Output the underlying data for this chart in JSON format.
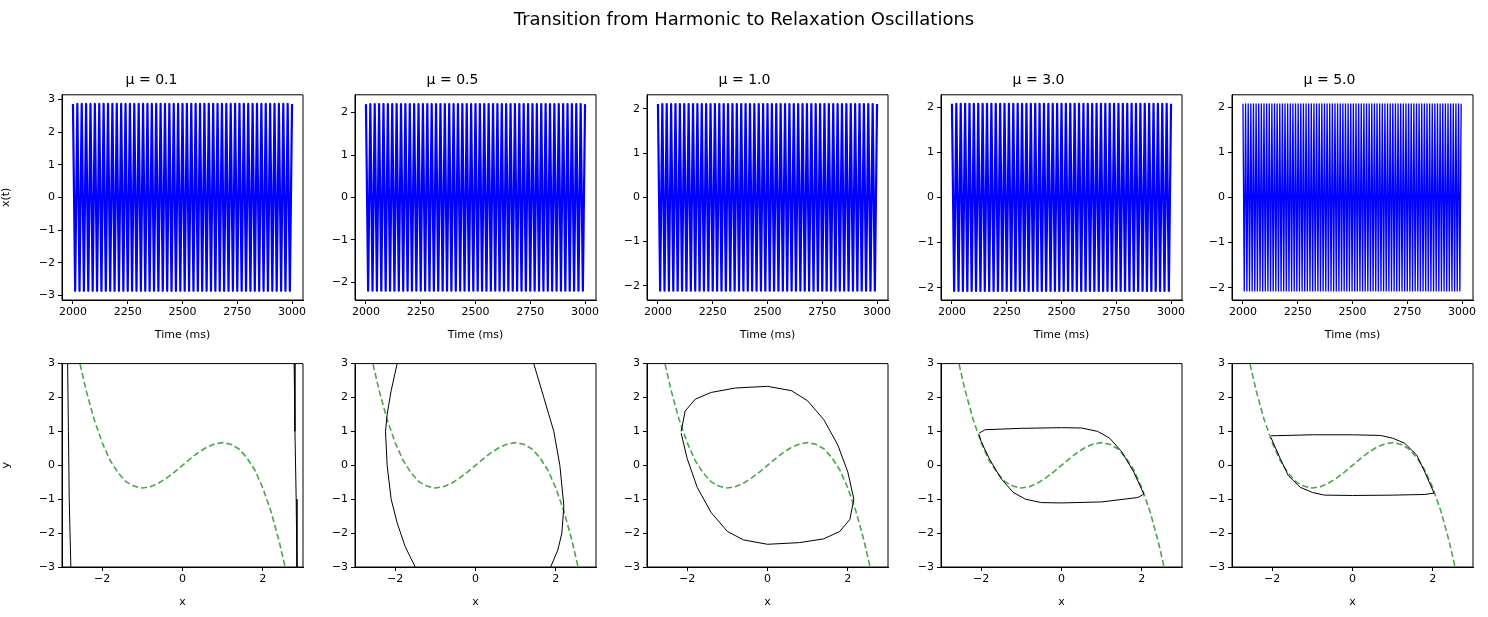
{
  "chart_data": [
    {
      "type": "line",
      "title": "μ = 0.1",
      "xlabel": "Time (ms)",
      "ylabel": "x(t)",
      "annotations": [
        "Transition from Harmonic to Relaxation Oscillations"
      ],
      "xlim": [
        1950,
        3050
      ],
      "xticks": [
        2000,
        2250,
        2500,
        2750,
        3000
      ],
      "ylim": [
        -3.14,
        3.14
      ],
      "yticks": [
        -3,
        -2,
        -1,
        0,
        1,
        2,
        3
      ],
      "x": [
        2000,
        2010,
        2020,
        2030,
        2040,
        2050,
        2060,
        2070,
        2080,
        2090,
        2100,
        2110,
        2120,
        2130,
        2140,
        2150,
        2160,
        2170,
        2180,
        2190,
        2200,
        2210,
        2220,
        2230,
        2240,
        2250,
        2260,
        2270,
        2280,
        2290,
        2300,
        2310,
        2320,
        2330,
        2340,
        2350,
        2360,
        2370,
        2380,
        2390,
        2400,
        2410,
        2420,
        2430,
        2440,
        2450,
        2460,
        2470,
        2480,
        2490,
        2500,
        2510,
        2520,
        2530,
        2540,
        2550,
        2560,
        2570,
        2580,
        2590,
        2600,
        2610,
        2620,
        2630,
        2640,
        2650,
        2660,
        2670,
        2680,
        2690,
        2700,
        2710,
        2720,
        2730,
        2740,
        2750,
        2760,
        2770,
        2780,
        2790,
        2800,
        2810,
        2820,
        2830,
        2840,
        2850,
        2860,
        2870,
        2880,
        2890,
        2900,
        2910,
        2920,
        2930,
        2940,
        2950,
        2960,
        2970,
        2980,
        2990,
        3000
      ],
      "series": [
        {
          "color": "#0000ff",
          "values": [
            2.86,
            -2.86,
            2.86,
            -2.86,
            2.86,
            -2.86,
            2.86,
            -2.86,
            2.86,
            -2.86,
            2.86,
            -2.86,
            2.86,
            -2.86,
            2.86,
            -2.86,
            2.86,
            -2.86,
            2.86,
            -2.86,
            2.86,
            -2.86,
            2.86,
            -2.86,
            2.86,
            -2.86,
            2.86,
            -2.86,
            2.86,
            -2.86,
            2.86,
            -2.86,
            2.86,
            -2.86,
            2.86,
            -2.86,
            2.86,
            -2.86,
            2.86,
            -2.86,
            2.86,
            -2.86,
            2.86,
            -2.86,
            2.86,
            -2.86,
            2.86,
            -2.86,
            2.86,
            -2.86,
            2.86,
            -2.86,
            2.86,
            -2.86,
            2.86,
            -2.86,
            2.86,
            -2.86,
            2.86,
            -2.86,
            2.86,
            -2.86,
            2.86,
            -2.86,
            2.86,
            -2.86,
            2.86,
            -2.86,
            2.86,
            -2.86,
            2.86,
            -2.86,
            2.86,
            -2.86,
            2.86,
            -2.86,
            2.86,
            -2.86,
            2.86,
            -2.86,
            2.86,
            -2.86,
            2.86,
            -2.86,
            2.86,
            -2.86,
            2.86,
            -2.86,
            2.86,
            -2.86,
            2.86,
            -2.86,
            2.86,
            -2.86,
            2.86,
            -2.86,
            2.86,
            -2.86,
            2.86,
            -2.86,
            2.86
          ]
        }
      ]
    },
    {
      "type": "line",
      "title": "μ = 0.5",
      "xlabel": "Time (ms)",
      "xlim": [
        1950,
        3050
      ],
      "xticks": [
        2000,
        2250,
        2500,
        2750,
        3000
      ],
      "ylim": [
        -2.42,
        2.42
      ],
      "yticks": [
        -2,
        -1,
        0,
        1,
        2
      ],
      "x": [
        2000,
        2010,
        2020,
        2030,
        2040,
        2050,
        2060,
        2070,
        2080,
        2090,
        2100,
        2110,
        2120,
        2130,
        2140,
        2150,
        2160,
        2170,
        2180,
        2190,
        2200,
        2210,
        2220,
        2230,
        2240,
        2250,
        2260,
        2270,
        2280,
        2290,
        2300,
        2310,
        2320,
        2330,
        2340,
        2350,
        2360,
        2370,
        2380,
        2390,
        2400,
        2410,
        2420,
        2430,
        2440,
        2450,
        2460,
        2470,
        2480,
        2490,
        2500,
        2510,
        2520,
        2530,
        2540,
        2550,
        2560,
        2570,
        2580,
        2590,
        2600,
        2610,
        2620,
        2630,
        2640,
        2650,
        2660,
        2670,
        2680,
        2690,
        2700,
        2710,
        2720,
        2730,
        2740,
        2750,
        2760,
        2770,
        2780,
        2790,
        2800,
        2810,
        2820,
        2830,
        2840,
        2850,
        2860,
        2870,
        2880,
        2890,
        2900,
        2910,
        2920,
        2930,
        2940,
        2950,
        2960,
        2970,
        2980,
        2990,
        3000
      ],
      "series": [
        {
          "color": "#0000ff",
          "values": [
            2.2,
            -2.2,
            2.2,
            -2.2,
            2.2,
            -2.2,
            2.2,
            -2.2,
            2.2,
            -2.2,
            2.2,
            -2.2,
            2.2,
            -2.2,
            2.2,
            -2.2,
            2.2,
            -2.2,
            2.2,
            -2.2,
            2.2,
            -2.2,
            2.2,
            -2.2,
            2.2,
            -2.2,
            2.2,
            -2.2,
            2.2,
            -2.2,
            2.2,
            -2.2,
            2.2,
            -2.2,
            2.2,
            -2.2,
            2.2,
            -2.2,
            2.2,
            -2.2,
            2.2,
            -2.2,
            2.2,
            -2.2,
            2.2,
            -2.2,
            2.2,
            -2.2,
            2.2,
            -2.2,
            2.2,
            -2.2,
            2.2,
            -2.2,
            2.2,
            -2.2,
            2.2,
            -2.2,
            2.2,
            -2.2,
            2.2,
            -2.2,
            2.2,
            -2.2,
            2.2,
            -2.2,
            2.2,
            -2.2,
            2.2,
            -2.2,
            2.2,
            -2.2,
            2.2,
            -2.2,
            2.2,
            -2.2,
            2.2,
            -2.2,
            2.2,
            -2.2,
            2.2,
            -2.2,
            2.2,
            -2.2,
            2.2,
            -2.2,
            2.2,
            -2.2,
            2.2,
            -2.2,
            2.2,
            -2.2,
            2.2,
            -2.2,
            2.2,
            -2.2,
            2.2,
            -2.2,
            2.2,
            -2.2,
            2.2
          ]
        }
      ]
    },
    {
      "type": "line",
      "title": "μ = 1.0",
      "xlabel": "Time (ms)",
      "xlim": [
        1950,
        3050
      ],
      "xticks": [
        2000,
        2250,
        2500,
        2750,
        3000
      ],
      "ylim": [
        -2.32,
        2.32
      ],
      "yticks": [
        -2,
        -1,
        0,
        1,
        2
      ],
      "x": [
        2000,
        2010,
        2020,
        2030,
        2040,
        2050,
        2060,
        2070,
        2080,
        2090,
        2100,
        2110,
        2120,
        2130,
        2140,
        2150,
        2160,
        2170,
        2180,
        2190,
        2200,
        2210,
        2220,
        2230,
        2240,
        2250,
        2260,
        2270,
        2280,
        2290,
        2300,
        2310,
        2320,
        2330,
        2340,
        2350,
        2360,
        2370,
        2380,
        2390,
        2400,
        2410,
        2420,
        2430,
        2440,
        2450,
        2460,
        2470,
        2480,
        2490,
        2500,
        2510,
        2520,
        2530,
        2540,
        2550,
        2560,
        2570,
        2580,
        2590,
        2600,
        2610,
        2620,
        2630,
        2640,
        2650,
        2660,
        2670,
        2680,
        2690,
        2700,
        2710,
        2720,
        2730,
        2740,
        2750,
        2760,
        2770,
        2780,
        2790,
        2800,
        2810,
        2820,
        2830,
        2840,
        2850,
        2860,
        2870,
        2880,
        2890,
        2900,
        2910,
        2920,
        2930,
        2940,
        2950,
        2960,
        2970,
        2980,
        2990,
        3000
      ],
      "series": [
        {
          "color": "#0000ff",
          "values": [
            2.11,
            -2.11,
            2.11,
            -2.11,
            2.11,
            -2.11,
            2.11,
            -2.11,
            2.11,
            -2.11,
            2.11,
            -2.11,
            2.11,
            -2.11,
            2.11,
            -2.11,
            2.11,
            -2.11,
            2.11,
            -2.11,
            2.11,
            -2.11,
            2.11,
            -2.11,
            2.11,
            -2.11,
            2.11,
            -2.11,
            2.11,
            -2.11,
            2.11,
            -2.11,
            2.11,
            -2.11,
            2.11,
            -2.11,
            2.11,
            -2.11,
            2.11,
            -2.11,
            2.11,
            -2.11,
            2.11,
            -2.11,
            2.11,
            -2.11,
            2.11,
            -2.11,
            2.11,
            -2.11,
            2.11,
            -2.11,
            2.11,
            -2.11,
            2.11,
            -2.11,
            2.11,
            -2.11,
            2.11,
            -2.11,
            2.11,
            -2.11,
            2.11,
            -2.11,
            2.11,
            -2.11,
            2.11,
            -2.11,
            2.11,
            -2.11,
            2.11,
            -2.11,
            2.11,
            -2.11,
            2.11,
            -2.11,
            2.11,
            -2.11,
            2.11,
            -2.11,
            2.11,
            -2.11,
            2.11,
            -2.11,
            2.11,
            -2.11,
            2.11,
            -2.11,
            2.11,
            -2.11,
            2.11,
            -2.11,
            2.11,
            -2.11,
            2.11,
            -2.11,
            2.11,
            -2.11,
            2.11,
            -2.11,
            2.11
          ]
        }
      ]
    },
    {
      "type": "line",
      "title": "μ = 3.0",
      "xlabel": "Time (ms)",
      "xlim": [
        1950,
        3050
      ],
      "xticks": [
        2000,
        2250,
        2500,
        2750,
        3000
      ],
      "ylim": [
        -2.27,
        2.27
      ],
      "yticks": [
        -2,
        -1,
        0,
        1,
        2
      ],
      "x": [
        2000,
        2010,
        2020,
        2030,
        2040,
        2050,
        2060,
        2070,
        2080,
        2090,
        2100,
        2110,
        2120,
        2130,
        2140,
        2150,
        2160,
        2170,
        2180,
        2190,
        2200,
        2210,
        2220,
        2230,
        2240,
        2250,
        2260,
        2270,
        2280,
        2290,
        2300,
        2310,
        2320,
        2330,
        2340,
        2350,
        2360,
        2370,
        2380,
        2390,
        2400,
        2410,
        2420,
        2430,
        2440,
        2450,
        2460,
        2470,
        2480,
        2490,
        2500,
        2510,
        2520,
        2530,
        2540,
        2550,
        2560,
        2570,
        2580,
        2590,
        2600,
        2610,
        2620,
        2630,
        2640,
        2650,
        2660,
        2670,
        2680,
        2690,
        2700,
        2710,
        2720,
        2730,
        2740,
        2750,
        2760,
        2770,
        2780,
        2790,
        2800,
        2810,
        2820,
        2830,
        2840,
        2850,
        2860,
        2870,
        2880,
        2890,
        2900,
        2910,
        2920,
        2930,
        2940,
        2950,
        2960,
        2970,
        2980,
        2990,
        3000
      ],
      "series": [
        {
          "color": "#0000ff",
          "values": [
            2.07,
            -2.07,
            2.07,
            -2.07,
            2.07,
            -2.07,
            2.07,
            -2.07,
            2.07,
            -2.07,
            2.07,
            -2.07,
            2.07,
            -2.07,
            2.07,
            -2.07,
            2.07,
            -2.07,
            2.07,
            -2.07,
            2.07,
            -2.07,
            2.07,
            -2.07,
            2.07,
            -2.07,
            2.07,
            -2.07,
            2.07,
            -2.07,
            2.07,
            -2.07,
            2.07,
            -2.07,
            2.07,
            -2.07,
            2.07,
            -2.07,
            2.07,
            -2.07,
            2.07,
            -2.07,
            2.07,
            -2.07,
            2.07,
            -2.07,
            2.07,
            -2.07,
            2.07,
            -2.07,
            2.07,
            -2.07,
            2.07,
            -2.07,
            2.07,
            -2.07,
            2.07,
            -2.07,
            2.07,
            -2.07,
            2.07,
            -2.07,
            2.07,
            -2.07,
            2.07,
            -2.07,
            2.07,
            -2.07,
            2.07,
            -2.07,
            2.07,
            -2.07,
            2.07,
            -2.07,
            2.07,
            -2.07,
            2.07,
            -2.07,
            2.07,
            -2.07,
            2.07,
            -2.07,
            2.07,
            -2.07,
            2.07,
            -2.07,
            2.07,
            -2.07,
            2.07,
            -2.07,
            2.07,
            -2.07,
            2.07,
            -2.07,
            2.07,
            -2.07,
            2.07,
            -2.07,
            2.07,
            -2.07,
            2.07
          ]
        }
      ]
    },
    {
      "type": "line",
      "title": "μ = 5.0",
      "xlabel": "Time (ms)",
      "xlim": [
        1950,
        3050
      ],
      "xticks": [
        2000,
        2250,
        2500,
        2750,
        3000
      ],
      "ylim": [
        -2.27,
        2.27
      ],
      "yticks": [
        -2,
        -1,
        0,
        1,
        2
      ],
      "x": [
        2000,
        2006,
        2012,
        2018,
        2024,
        2030,
        2036,
        2042,
        2048,
        2054,
        2060,
        2066,
        2072,
        2078,
        2084,
        2090,
        2096,
        2102,
        2108,
        2114,
        2120,
        2126,
        2132,
        2138,
        2144,
        2150,
        2156,
        2162,
        2168,
        2174,
        2180,
        2186,
        2192,
        2198,
        2204,
        2210,
        2216,
        2222,
        2228,
        2234,
        2240,
        2246,
        2252,
        2258,
        2264,
        2270,
        2276,
        2282,
        2288,
        2294,
        2300,
        2306,
        2312,
        2318,
        2324,
        2330,
        2336,
        2342,
        2348,
        2354,
        2360,
        2366,
        2372,
        2378,
        2384,
        2390,
        2396,
        2402,
        2408,
        2414,
        2420,
        2426,
        2432,
        2438,
        2444,
        2450,
        2456,
        2462,
        2468,
        2474,
        2480,
        2486,
        2492,
        2498,
        2504,
        2510,
        2516,
        2522,
        2528,
        2534,
        2540,
        2546,
        2552,
        2558,
        2564,
        2570,
        2576,
        2582,
        2588,
        2594,
        2600,
        2606,
        2612,
        2618,
        2624,
        2630,
        2636,
        2642,
        2648,
        2654,
        2660,
        2666,
        2672,
        2678,
        2684,
        2690,
        2696,
        2702,
        2708,
        2714,
        2720,
        2726,
        2732,
        2738,
        2744,
        2750,
        2756,
        2762,
        2768,
        2774,
        2780,
        2786,
        2792,
        2798,
        2804,
        2810,
        2816,
        2822,
        2828,
        2834,
        2840,
        2846,
        2852,
        2858,
        2864,
        2870,
        2876,
        2882,
        2888,
        2894,
        2900,
        2906,
        2912,
        2918,
        2924,
        2930,
        2936,
        2942,
        2948,
        2954,
        2960,
        2966,
        2972,
        2978,
        2984,
        2990,
        2996
      ],
      "series": [
        {
          "color": "#0000ff",
          "values": [
            2.07,
            -2.07,
            2.07,
            -2.07,
            2.07,
            -2.07,
            2.07,
            -2.07,
            2.07,
            -2.07,
            2.07,
            -2.07,
            2.07,
            -2.07,
            2.07,
            -2.07,
            2.07,
            -2.07,
            2.07,
            -2.07,
            2.07,
            -2.07,
            2.07,
            -2.07,
            2.07,
            -2.07,
            2.07,
            -2.07,
            2.07,
            -2.07,
            2.07,
            -2.07,
            2.07,
            -2.07,
            2.07,
            -2.07,
            2.07,
            -2.07,
            2.07,
            -2.07,
            2.07,
            -2.07,
            2.07,
            -2.07,
            2.07,
            -2.07,
            2.07,
            -2.07,
            2.07,
            -2.07,
            2.07,
            -2.07,
            2.07,
            -2.07,
            2.07,
            -2.07,
            2.07,
            -2.07,
            2.07,
            -2.07,
            2.07,
            -2.07,
            2.07,
            -2.07,
            2.07,
            -2.07,
            2.07,
            -2.07,
            2.07,
            -2.07,
            2.07,
            -2.07,
            2.07,
            -2.07,
            2.07,
            -2.07,
            2.07,
            -2.07,
            2.07,
            -2.07,
            2.07,
            -2.07,
            2.07,
            -2.07,
            2.07,
            -2.07,
            2.07,
            -2.07,
            2.07,
            -2.07,
            2.07,
            -2.07,
            2.07,
            -2.07,
            2.07,
            -2.07,
            2.07,
            -2.07,
            2.07,
            -2.07,
            2.07,
            -2.07,
            2.07,
            -2.07,
            2.07,
            -2.07,
            2.07,
            -2.07,
            2.07,
            -2.07,
            2.07,
            -2.07,
            2.07,
            -2.07,
            2.07,
            -2.07,
            2.07,
            -2.07,
            2.07,
            -2.07,
            2.07,
            -2.07,
            2.07,
            -2.07,
            2.07,
            -2.07,
            2.07,
            -2.07,
            2.07,
            -2.07,
            2.07,
            -2.07,
            2.07,
            -2.07,
            2.07,
            -2.07,
            2.07,
            -2.07,
            2.07,
            -2.07,
            2.07,
            -2.07,
            2.07,
            -2.07,
            2.07,
            -2.07,
            2.07,
            -2.07,
            2.07,
            -2.07,
            2.07,
            -2.07,
            2.07,
            -2.07,
            2.07,
            -2.07,
            2.07,
            -2.07,
            2.07,
            -2.07,
            2.07,
            -2.07,
            2.07,
            -2.07,
            2.07,
            -2.07,
            2.07
          ]
        }
      ]
    },
    {
      "type": "line",
      "xlabel": "x",
      "ylabel": "y",
      "xlim": [
        -3,
        3
      ],
      "xticks": [
        -2,
        0,
        2
      ],
      "ylim": [
        -3,
        3
      ],
      "yticks": [
        -3,
        -2,
        -1,
        0,
        1,
        2,
        3
      ],
      "series": [
        {
          "color": "#000000",
          "x": [
            -2.86,
            -2.84,
            -2.82,
            -2.78,
            0,
            2.78,
            2.8,
            2.83,
            2.85
          ],
          "values": [
            3,
            1,
            -1,
            -3,
            null,
            3,
            1,
            -1,
            -3
          ]
        },
        {
          "color": "#4da64d",
          "line_style": "dashed",
          "x": [
            -2.55,
            -2.4,
            -2.2,
            -2,
            -1.8,
            -1.6,
            -1.4,
            -1.2,
            -1,
            -0.8,
            -0.6,
            -0.4,
            -0.2,
            0,
            0.2,
            0.4,
            0.6,
            0.8,
            1,
            1.2,
            1.4,
            1.6,
            1.8,
            2,
            2.2,
            2.4,
            2.55
          ],
          "values": [
            2.98,
            2.21,
            1.35,
            0.67,
            0.14,
            -0.23,
            -0.49,
            -0.62,
            -0.67,
            -0.63,
            -0.53,
            -0.38,
            -0.2,
            0,
            0.2,
            0.38,
            0.53,
            0.63,
            0.67,
            0.62,
            0.49,
            0.23,
            -0.14,
            -0.67,
            -1.35,
            -2.21,
            -2.98
          ]
        }
      ]
    },
    {
      "type": "line",
      "xlabel": "x",
      "xlim": [
        -3,
        3
      ],
      "xticks": [
        -2,
        0,
        2
      ],
      "ylim": [
        -3,
        3
      ],
      "yticks": [
        -3,
        -2,
        -1,
        0,
        1,
        2,
        3
      ],
      "series": [
        {
          "color": "#000000",
          "x": [
            -1.95,
            -2.1,
            -2.2,
            -2.24,
            -2.2,
            -2.1,
            -1.95,
            -1.75,
            -1.5,
            0,
            1.45,
            1.7,
            1.95,
            2.1,
            2.2,
            2.15,
            2.05,
            1.87
          ],
          "values": [
            3,
            2.2,
            1.5,
            1,
            0,
            -1,
            -1.7,
            -2.4,
            -3,
            null,
            3,
            2,
            1,
            0,
            -1.2,
            -2,
            -2.5,
            -3
          ]
        },
        {
          "color": "#4da64d",
          "line_style": "dashed",
          "x": [
            -2.55,
            -2.4,
            -2.2,
            -2,
            -1.8,
            -1.6,
            -1.4,
            -1.2,
            -1,
            -0.8,
            -0.6,
            -0.4,
            -0.2,
            0,
            0.2,
            0.4,
            0.6,
            0.8,
            1,
            1.2,
            1.4,
            1.6,
            1.8,
            2,
            2.2,
            2.4,
            2.55
          ],
          "values": [
            2.98,
            2.21,
            1.35,
            0.67,
            0.14,
            -0.23,
            -0.49,
            -0.62,
            -0.67,
            -0.63,
            -0.53,
            -0.38,
            -0.2,
            0,
            0.2,
            0.38,
            0.53,
            0.63,
            0.67,
            0.62,
            0.49,
            0.23,
            -0.14,
            -0.67,
            -1.35,
            -2.21,
            -2.98
          ]
        }
      ]
    },
    {
      "type": "line",
      "xlabel": "x",
      "xlim": [
        -3,
        3
      ],
      "xticks": [
        -2,
        0,
        2
      ],
      "ylim": [
        -3,
        3
      ],
      "yticks": [
        -3,
        -2,
        -1,
        0,
        1,
        2,
        3
      ],
      "series": [
        {
          "color": "#000000",
          "x": [
            -2.15,
            -2.05,
            -1.8,
            -1.4,
            -0.8,
            0,
            0.6,
            1,
            1.4,
            1.75,
            2,
            2.15,
            2.05,
            1.8,
            1.4,
            0.8,
            0,
            -0.6,
            -1,
            -1.4,
            -1.75,
            -2,
            -2.15
          ],
          "values": [
            1,
            1.6,
            1.95,
            2.15,
            2.28,
            2.33,
            2.2,
            1.9,
            1.35,
            0.6,
            -0.2,
            -1,
            -1.6,
            -1.95,
            -2.17,
            -2.28,
            -2.33,
            -2.2,
            -1.95,
            -1.4,
            -0.65,
            0.2,
            0.95
          ]
        },
        {
          "color": "#4da64d",
          "line_style": "dashed",
          "x": [
            -2.55,
            -2.4,
            -2.2,
            -2,
            -1.8,
            -1.6,
            -1.4,
            -1.2,
            -1,
            -0.8,
            -0.6,
            -0.4,
            -0.2,
            0,
            0.2,
            0.4,
            0.6,
            0.8,
            1,
            1.2,
            1.4,
            1.6,
            1.8,
            2,
            2.2,
            2.4,
            2.55
          ],
          "values": [
            2.98,
            2.21,
            1.35,
            0.67,
            0.14,
            -0.23,
            -0.49,
            -0.62,
            -0.67,
            -0.63,
            -0.53,
            -0.38,
            -0.2,
            0,
            0.2,
            0.38,
            0.53,
            0.63,
            0.67,
            0.62,
            0.49,
            0.23,
            -0.14,
            -0.67,
            -1.35,
            -2.21,
            -2.98
          ]
        }
      ]
    },
    {
      "type": "line",
      "xlabel": "x",
      "xlim": [
        -3,
        3
      ],
      "xticks": [
        -2,
        0,
        2
      ],
      "ylim": [
        -3,
        3
      ],
      "yticks": [
        -3,
        -2,
        -1,
        0,
        1,
        2,
        3
      ],
      "series": [
        {
          "color": "#000000",
          "x": [
            -2.05,
            -1.9,
            -1,
            0,
            0.5,
            0.9,
            1.2,
            1.5,
            1.8,
            2.05,
            1.9,
            1,
            0,
            -0.5,
            -0.9,
            -1.2,
            -1.5,
            -1.8,
            -2,
            -2.05
          ],
          "values": [
            0.95,
            1.05,
            1.09,
            1.11,
            1.1,
            1,
            0.8,
            0.4,
            -0.2,
            -0.85,
            -0.95,
            -1.08,
            -1.11,
            -1.1,
            -1,
            -0.8,
            -0.4,
            0.2,
            0.7,
            0.9
          ]
        },
        {
          "color": "#4da64d",
          "line_style": "dashed",
          "x": [
            -2.55,
            -2.4,
            -2.2,
            -2,
            -1.8,
            -1.6,
            -1.4,
            -1.2,
            -1,
            -0.8,
            -0.6,
            -0.4,
            -0.2,
            0,
            0.2,
            0.4,
            0.6,
            0.8,
            1,
            1.2,
            1.4,
            1.6,
            1.8,
            2,
            2.2,
            2.4,
            2.55
          ],
          "values": [
            2.98,
            2.21,
            1.35,
            0.67,
            0.14,
            -0.23,
            -0.49,
            -0.62,
            -0.67,
            -0.63,
            -0.53,
            -0.38,
            -0.2,
            0,
            0.2,
            0.38,
            0.53,
            0.63,
            0.67,
            0.62,
            0.49,
            0.23,
            -0.14,
            -0.67,
            -1.35,
            -2.21,
            -2.98
          ]
        }
      ]
    },
    {
      "type": "line",
      "xlabel": "x",
      "xlim": [
        -3,
        3
      ],
      "xticks": [
        -2,
        0,
        2
      ],
      "ylim": [
        -3,
        3
      ],
      "yticks": [
        -3,
        -2,
        -1,
        0,
        1,
        2,
        3
      ],
      "series": [
        {
          "color": "#000000",
          "x": [
            -2.03,
            -1,
            0,
            0.7,
            1,
            1.3,
            1.6,
            1.8,
            2.03,
            1.8,
            1,
            0,
            -0.7,
            -1,
            -1.3,
            -1.6,
            -1.8,
            -2.03
          ],
          "values": [
            0.87,
            0.9,
            0.9,
            0.88,
            0.8,
            0.65,
            0.3,
            -0.2,
            -0.82,
            -0.86,
            -0.88,
            -0.89,
            -0.88,
            -0.8,
            -0.65,
            -0.3,
            0.2,
            0.82
          ]
        },
        {
          "color": "#4da64d",
          "line_style": "dashed",
          "x": [
            -2.55,
            -2.4,
            -2.2,
            -2,
            -1.8,
            -1.6,
            -1.4,
            -1.2,
            -1,
            -0.8,
            -0.6,
            -0.4,
            -0.2,
            0,
            0.2,
            0.4,
            0.6,
            0.8,
            1,
            1.2,
            1.4,
            1.6,
            1.8,
            2,
            2.2,
            2.4,
            2.55
          ],
          "values": [
            2.98,
            2.21,
            1.35,
            0.67,
            0.14,
            -0.23,
            -0.49,
            -0.62,
            -0.67,
            -0.63,
            -0.53,
            -0.38,
            -0.2,
            0,
            0.2,
            0.38,
            0.53,
            0.63,
            0.67,
            0.62,
            0.49,
            0.23,
            -0.14,
            -0.67,
            -1.35,
            -2.21,
            -2.98
          ]
        }
      ]
    }
  ]
}
